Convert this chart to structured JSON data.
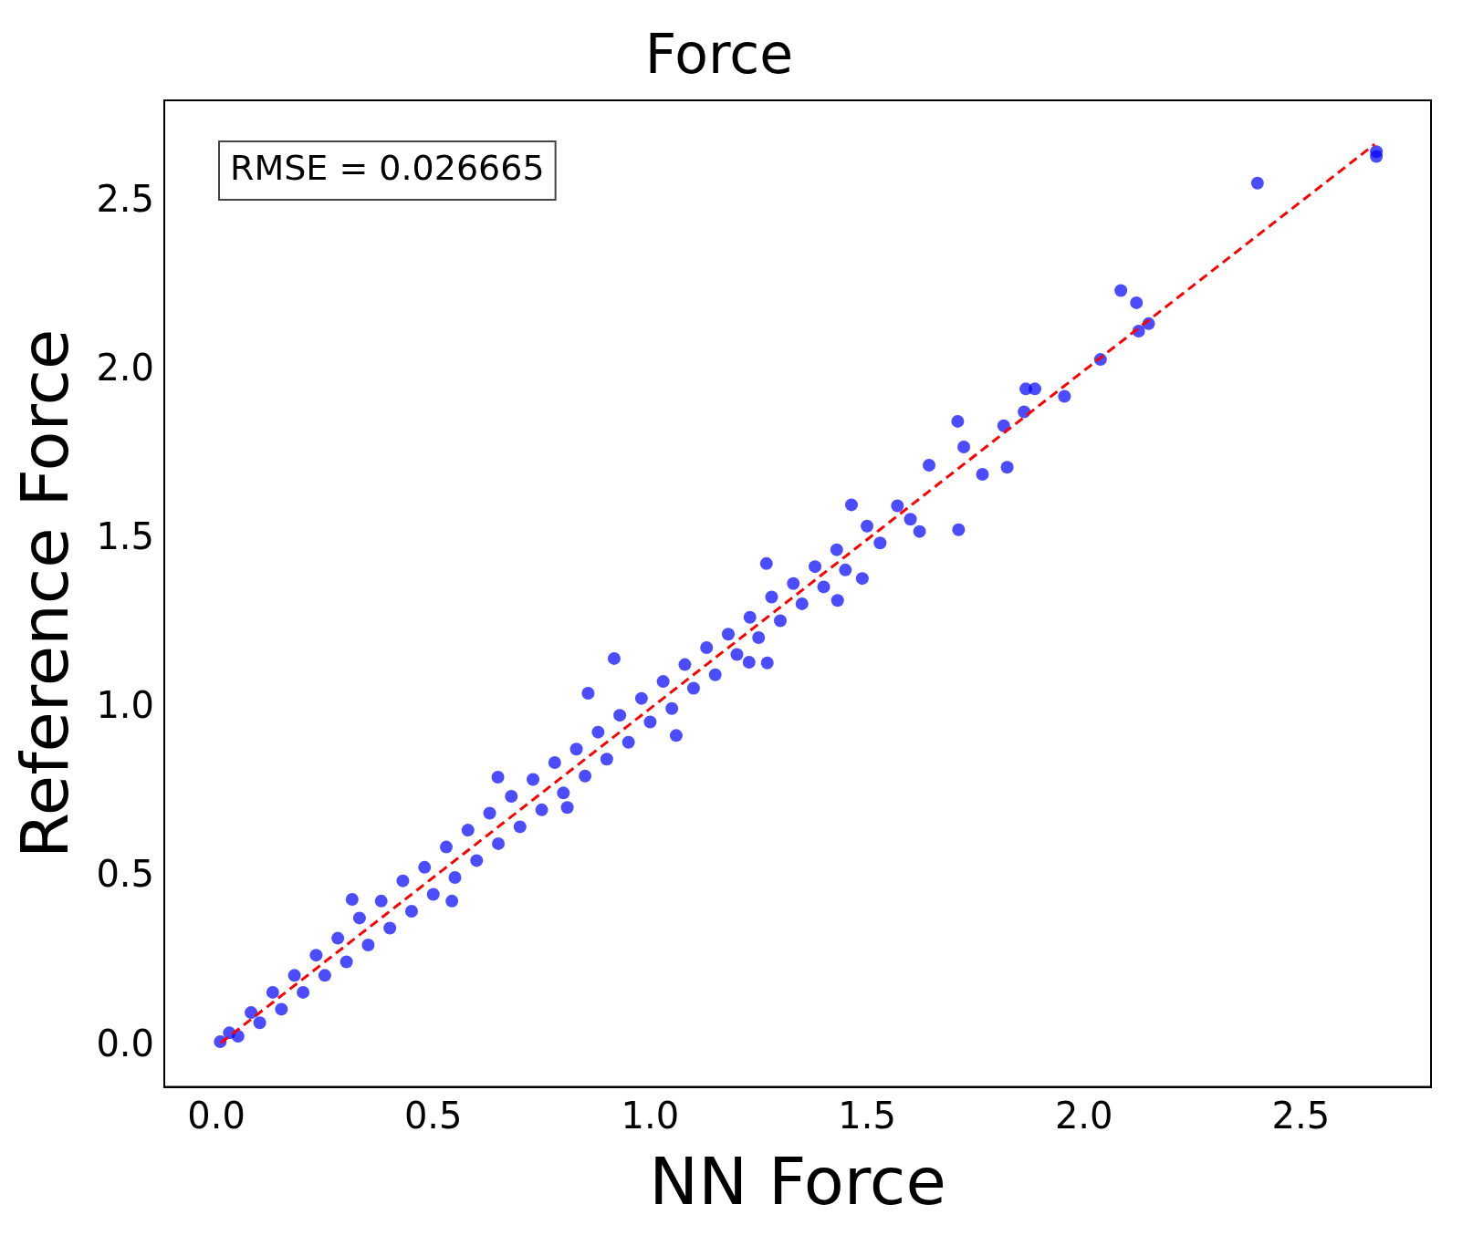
{
  "chart_data": {
    "type": "scatter",
    "title": "Force",
    "xlabel": "NN Force",
    "ylabel": "Reference Force",
    "annotations": [
      "RMSE = 0.026665"
    ],
    "grid": false,
    "xlim": [
      -0.12,
      2.8
    ],
    "ylim": [
      -0.12,
      2.8
    ],
    "xticks": [
      {
        "value": 0,
        "label": "0.0"
      },
      {
        "value": 0.5,
        "label": "0.5"
      },
      {
        "value": 1,
        "label": "1.0"
      },
      {
        "value": 1.5,
        "label": "1.5"
      },
      {
        "value": 2,
        "label": "2.0"
      },
      {
        "value": 2.5,
        "label": "2.5"
      }
    ],
    "yticks": [
      {
        "value": 0,
        "label": "0.0"
      },
      {
        "value": 0.5,
        "label": "0.5"
      },
      {
        "value": 1,
        "label": "1.0"
      },
      {
        "value": 1.5,
        "label": "1.5"
      },
      {
        "value": 2,
        "label": "2.0"
      },
      {
        "value": 2.5,
        "label": "2.5"
      }
    ],
    "series": [
      {
        "marker": "circle",
        "color": "#0000ff",
        "x": [
          0.009,
          0.03,
          0.05,
          0.08,
          0.1,
          0.13,
          0.15,
          0.18,
          0.2,
          0.23,
          0.25,
          0.28,
          0.3,
          0.313,
          0.33,
          0.35,
          0.38,
          0.4,
          0.43,
          0.45,
          0.48,
          0.5,
          0.53,
          0.543,
          0.55,
          0.58,
          0.6,
          0.63,
          0.649,
          0.65,
          0.68,
          0.7,
          0.73,
          0.75,
          0.78,
          0.8,
          0.809,
          0.83,
          0.85,
          0.857,
          0.88,
          0.9,
          0.917,
          0.93,
          0.95,
          0.98,
          1.0,
          1.03,
          1.05,
          1.06,
          1.08,
          1.1,
          1.13,
          1.15,
          1.18,
          1.2,
          1.228,
          1.23,
          1.25,
          1.268,
          1.27,
          1.28,
          1.3,
          1.33,
          1.35,
          1.38,
          1.4,
          1.43,
          1.432,
          1.45,
          1.464,
          1.489,
          1.5,
          1.53,
          1.57,
          1.6,
          1.621,
          1.643,
          1.709,
          1.711,
          1.723,
          1.766,
          1.815,
          1.823,
          1.862,
          1.866,
          1.887,
          1.955,
          2.038,
          2.085,
          2.121,
          2.126,
          2.149,
          2.4,
          2.674,
          2.674
        ],
        "values": [
          0.014,
          0.04,
          0.03,
          0.1,
          0.07,
          0.16,
          0.11,
          0.21,
          0.16,
          0.27,
          0.21,
          0.32,
          0.25,
          0.435,
          0.38,
          0.3,
          0.43,
          0.35,
          0.49,
          0.4,
          0.53,
          0.45,
          0.59,
          0.43,
          0.5,
          0.64,
          0.55,
          0.69,
          0.797,
          0.6,
          0.74,
          0.65,
          0.79,
          0.7,
          0.84,
          0.75,
          0.707,
          0.88,
          0.8,
          1.045,
          0.93,
          0.85,
          1.148,
          0.98,
          0.9,
          1.03,
          0.96,
          1.08,
          1.0,
          0.92,
          1.13,
          1.06,
          1.18,
          1.1,
          1.22,
          1.16,
          1.137,
          1.27,
          1.21,
          1.429,
          1.135,
          1.33,
          1.26,
          1.37,
          1.31,
          1.42,
          1.36,
          1.47,
          1.32,
          1.41,
          1.603,
          1.385,
          1.54,
          1.49,
          1.6,
          1.56,
          1.524,
          1.72,
          1.85,
          1.529,
          1.774,
          1.693,
          1.837,
          1.714,
          1.878,
          1.946,
          1.946,
          1.924,
          2.033,
          2.237,
          2.201,
          2.117,
          2.139,
          2.555,
          2.634,
          2.648
        ]
      },
      {
        "type": "line",
        "color": "#ff0000",
        "line_style": "dashed",
        "x": [
          0.01,
          2.67
        ],
        "values": [
          0.01,
          2.67
        ]
      }
    ]
  }
}
